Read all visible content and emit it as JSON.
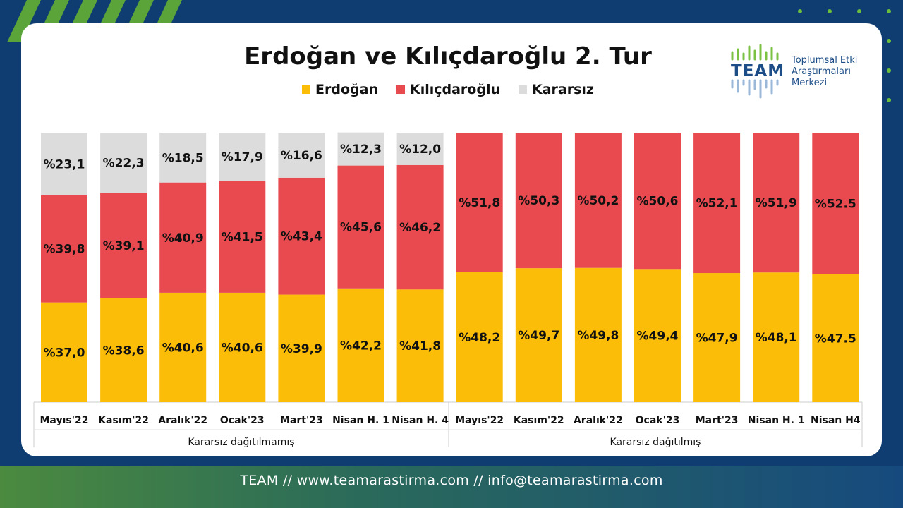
{
  "title": "Erdoğan ve Kılıçdaroğlu 2. Tur",
  "logo": {
    "team": "TEAM",
    "line1": "Toplumsal Etki",
    "line2": "Araştırmaları",
    "line3": "Merkezi"
  },
  "footer": "TEAM // www.teamarastirma.com // info@teamarastirma.com",
  "colors": {
    "erdogan": "#fbbd08",
    "kilicdaroglu": "#e84a50",
    "kararsiz": "#dcdcdc",
    "background": "#0f3d72",
    "logo": "#1c4d86"
  },
  "chart_data": {
    "type": "bar",
    "stacked": true,
    "title": "Erdoğan ve Kılıçdaroğlu 2. Tur",
    "legend": [
      "Erdoğan",
      "Kılıçdaroğlu",
      "Kararsız"
    ],
    "legend_position": "top",
    "ylim": [
      0,
      100
    ],
    "grid": false,
    "groups": [
      {
        "label": "Kararsız dağıtılmamış",
        "categories": [
          "Mayıs'22",
          "Kasım'22",
          "Aralık'22",
          "Ocak'23",
          "Mart'23",
          "Nisan H. 1",
          "Nisan H. 4"
        ],
        "series": [
          {
            "name": "Erdoğan",
            "values": [
              37.0,
              38.6,
              40.6,
              40.6,
              39.9,
              42.2,
              41.8
            ],
            "labels": [
              "%37,0",
              "%38,6",
              "%40,6",
              "%40,6",
              "%39,9",
              "%42,2",
              "%41,8"
            ]
          },
          {
            "name": "Kılıçdaroğlu",
            "values": [
              39.8,
              39.1,
              40.9,
              41.5,
              43.4,
              45.6,
              46.2
            ],
            "labels": [
              "%39,8",
              "%39,1",
              "%40,9",
              "%41,5",
              "%43,4",
              "%45,6",
              "%46,2"
            ]
          },
          {
            "name": "Kararsız",
            "values": [
              23.1,
              22.3,
              18.5,
              17.9,
              16.6,
              12.3,
              12.0
            ],
            "labels": [
              "%23,1",
              "%22,3",
              "%18,5",
              "%17,9",
              "%16,6",
              "%12,3",
              "%12,0"
            ]
          }
        ]
      },
      {
        "label": "Kararsız dağıtılmış",
        "categories": [
          "Mayıs'22",
          "Kasım'22",
          "Aralık'22",
          "Ocak'23",
          "Mart'23",
          "Nisan H. 1",
          "Nisan H4"
        ],
        "series": [
          {
            "name": "Erdoğan",
            "values": [
              48.2,
              49.7,
              49.8,
              49.4,
              47.9,
              48.1,
              47.5
            ],
            "labels": [
              "%48,2",
              "%49,7",
              "%49,8",
              "%49,4",
              "%47,9",
              "%48,1",
              "%47.5"
            ]
          },
          {
            "name": "Kılıçdaroğlu",
            "values": [
              51.8,
              50.3,
              50.2,
              50.6,
              52.1,
              51.9,
              52.5
            ],
            "labels": [
              "%51,8",
              "%50,3",
              "%50,2",
              "%50,6",
              "%52,1",
              "%51,9",
              "%52.5"
            ]
          }
        ]
      }
    ]
  }
}
